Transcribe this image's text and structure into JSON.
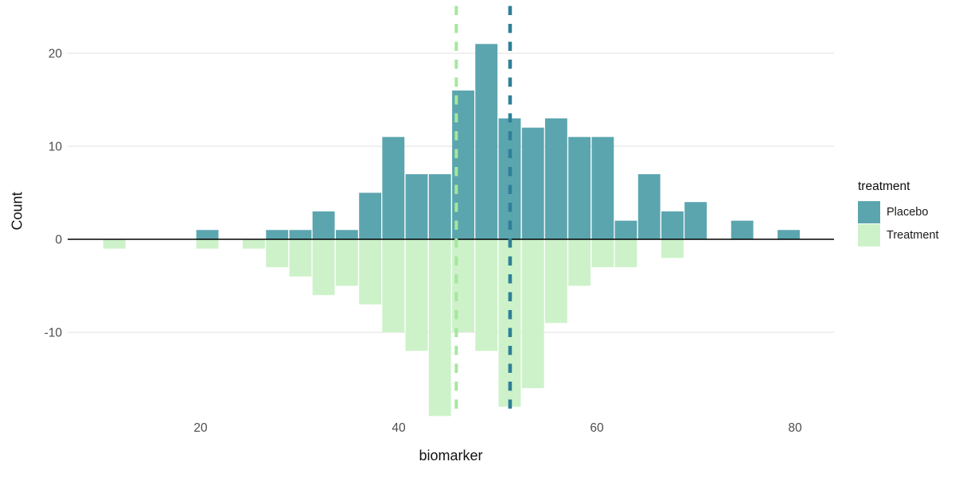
{
  "chart_data": {
    "type": "bar",
    "variant": "mirrored-histogram",
    "title": "",
    "xlabel": "biomarker",
    "ylabel": "Count",
    "grid": "horizontal-major-only",
    "legend": {
      "title": "treatment",
      "position": "right",
      "entries": [
        {
          "label": "Placebo",
          "color": "#5BA5AF"
        },
        {
          "label": "Treatment",
          "color": "#CDF2C9"
        }
      ]
    },
    "x_ticks": [
      20,
      40,
      60,
      80
    ],
    "y_ticks": [
      20,
      10,
      0,
      -10
    ],
    "xlim": [
      6.6,
      83.9
    ],
    "ylim": [
      -19.3,
      25.1
    ],
    "bin_width": 2.35,
    "series": [
      {
        "name": "Placebo",
        "color": "#5BA5AF",
        "direction": "up"
      },
      {
        "name": "Treatment",
        "color": "#CDF2C9",
        "direction": "down"
      }
    ],
    "bins": [
      {
        "center": 11.3,
        "placebo": 0,
        "treatment": 1
      },
      {
        "center": 13.65,
        "placebo": 0,
        "treatment": 0
      },
      {
        "center": 16.0,
        "placebo": 0,
        "treatment": 0
      },
      {
        "center": 18.34,
        "placebo": 0,
        "treatment": 0
      },
      {
        "center": 20.69,
        "placebo": 1,
        "treatment": 1
      },
      {
        "center": 23.04,
        "placebo": 0,
        "treatment": 0
      },
      {
        "center": 25.38,
        "placebo": 0,
        "treatment": 1
      },
      {
        "center": 27.73,
        "placebo": 1,
        "treatment": 3
      },
      {
        "center": 30.08,
        "placebo": 1,
        "treatment": 4
      },
      {
        "center": 32.42,
        "placebo": 3,
        "treatment": 6
      },
      {
        "center": 34.77,
        "placebo": 1,
        "treatment": 5
      },
      {
        "center": 37.12,
        "placebo": 5,
        "treatment": 7
      },
      {
        "center": 39.46,
        "placebo": 11,
        "treatment": 10
      },
      {
        "center": 41.81,
        "placebo": 7,
        "treatment": 12
      },
      {
        "center": 44.16,
        "placebo": 7,
        "treatment": 19
      },
      {
        "center": 46.51,
        "placebo": 16,
        "treatment": 10
      },
      {
        "center": 48.85,
        "placebo": 21,
        "treatment": 12
      },
      {
        "center": 51.2,
        "placebo": 13,
        "treatment": 18
      },
      {
        "center": 53.55,
        "placebo": 12,
        "treatment": 16
      },
      {
        "center": 55.89,
        "placebo": 13,
        "treatment": 9
      },
      {
        "center": 58.24,
        "placebo": 11,
        "treatment": 5
      },
      {
        "center": 60.59,
        "placebo": 11,
        "treatment": 3
      },
      {
        "center": 62.93,
        "placebo": 2,
        "treatment": 3
      },
      {
        "center": 65.28,
        "placebo": 7,
        "treatment": 0
      },
      {
        "center": 67.63,
        "placebo": 3,
        "treatment": 2
      },
      {
        "center": 69.97,
        "placebo": 4,
        "treatment": 0
      },
      {
        "center": 72.32,
        "placebo": 0,
        "treatment": 0
      },
      {
        "center": 74.67,
        "placebo": 2,
        "treatment": 0
      },
      {
        "center": 77.02,
        "placebo": 0,
        "treatment": 0
      },
      {
        "center": 79.36,
        "placebo": 1,
        "treatment": 0
      }
    ],
    "mean_lines": [
      {
        "series": "Placebo",
        "x": 51.24,
        "color": "#2F8098",
        "style": "dashed"
      },
      {
        "series": "Treatment",
        "x": 45.81,
        "color": "#A5E79D",
        "style": "dashed"
      }
    ],
    "colors": {
      "axis_line": "#000000",
      "gridline": "#ebebeb",
      "tick_text": "#4d4d4d",
      "axis_title_text": "#111111"
    }
  }
}
